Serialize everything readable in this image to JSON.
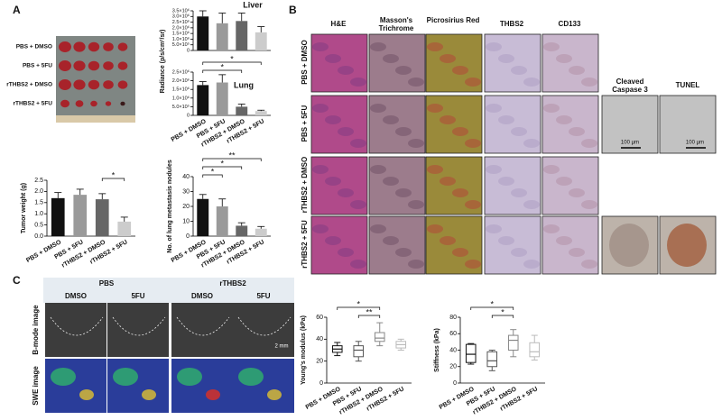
{
  "panel_labels": [
    "A",
    "B",
    "C"
  ],
  "panel_a": {
    "photo_rows": [
      "PBS + DMSO",
      "PBS + 5FU",
      "rTHBS2 + DMSO",
      "rTHBS2 + 5FU"
    ]
  },
  "panel_b": {
    "columns": [
      "H&E",
      "Masson's Trichrome",
      "Picrosirius Red",
      "THBS2",
      "CD133"
    ],
    "extra_columns": [
      "Cleaved Caspase 3",
      "TUNEL"
    ],
    "rows": [
      "PBS + DMSO",
      "PBS + 5FU",
      "rTHBS2 + DMSO",
      "rTHBS2 + 5FU"
    ],
    "scale_bars": [
      "100 μm",
      "100 μm"
    ]
  },
  "panel_c": {
    "groups": [
      "PBS",
      "rTHBS2"
    ],
    "columns": [
      "DMSO",
      "5FU",
      "DMSO",
      "5FU"
    ],
    "rows": [
      "B-mode image",
      "SWE image"
    ],
    "scale_bar": "2 mm"
  },
  "chart_data": [
    {
      "type": "bar",
      "title": "Liver",
      "values": [
        3000000,
        2400000,
        2600000,
        1600000
      ],
      "errors": [
        500000,
        900000,
        700000,
        500000
      ],
      "colors": [
        "#111111",
        "#9a9a9a",
        "#666666",
        "#cccccc"
      ],
      "ylim": [
        0,
        3500000
      ],
      "yticks": [
        0,
        {
          "value": 500000,
          "label": "5.0×10⁵"
        },
        {
          "value": 1000000,
          "label": "1.0×10⁶"
        },
        {
          "value": 1500000,
          "label": "1.5×10⁶"
        },
        {
          "value": 2000000,
          "label": "2.0×10⁶"
        },
        {
          "value": 2500000,
          "label": "2.5×10⁶"
        },
        {
          "value": 3000000,
          "label": "3.0×10⁶"
        },
        {
          "value": 3500000,
          "label": "3.5×10⁶"
        }
      ]
    },
    {
      "type": "bar",
      "title": "Lung",
      "y_label": "Radiance (p/s/cm²/sr)",
      "categories": [
        "PBS + DMSO",
        "PBS + 5FU",
        "rTHBS2 + DMSO",
        "rTHBS2 + 5FU"
      ],
      "values": [
        1750000,
        1900000,
        500000,
        250000
      ],
      "errors": [
        200000,
        450000,
        150000,
        50000
      ],
      "colors": [
        "#111111",
        "#9a9a9a",
        "#666666",
        "#cccccc"
      ],
      "ylim": [
        0,
        2500000
      ],
      "yticks": [
        0,
        {
          "value": 500000,
          "label": "5.0×10⁵"
        },
        {
          "value": 1000000,
          "label": "1.0×10⁶"
        },
        {
          "value": 1500000,
          "label": "1.5×10⁶"
        },
        {
          "value": 2000000,
          "label": "2.0×10⁶"
        },
        {
          "value": 2500000,
          "label": "2.5×10⁶"
        }
      ],
      "annotations": [
        "*",
        "*"
      ]
    },
    {
      "type": "bar",
      "y_label": "Tumor weight (g)",
      "categories": [
        "PBS + DMSO",
        "PBS + 5FU",
        "rTHBS2 + DMSO",
        "rTHBS2 + 5FU"
      ],
      "values": [
        1.7,
        1.85,
        1.65,
        0.65
      ],
      "errors": [
        0.25,
        0.25,
        0.25,
        0.2
      ],
      "colors": [
        "#111111",
        "#9a9a9a",
        "#666666",
        "#cccccc"
      ],
      "ylim": [
        0,
        2.5
      ],
      "yticks": [
        {
          "value": 0,
          "label": "0.0"
        },
        0.5,
        {
          "value": 1,
          "label": "1.0"
        },
        1.5,
        {
          "value": 2,
          "label": "2.0"
        },
        2.5
      ],
      "annotations": [
        "*"
      ]
    },
    {
      "type": "bar",
      "y_label": "No. of lung metastasis nodules",
      "categories": [
        "PBS + DMSO",
        "PBS + 5FU",
        "rTHBS2 + DMSO",
        "rTHBS2 + 5FU"
      ],
      "values": [
        25,
        20,
        7,
        5
      ],
      "errors": [
        3,
        5,
        2,
        1.5
      ],
      "colors": [
        "#111111",
        "#9a9a9a",
        "#666666",
        "#cccccc"
      ],
      "ylim": [
        0,
        40
      ],
      "yticks": [
        0,
        10,
        20,
        30,
        40
      ],
      "annotations": [
        "*",
        "*",
        "**"
      ]
    },
    {
      "type": "box",
      "y_label": "Young's modulus (kPa)",
      "categories": [
        "PBS + DMSO",
        "PBS + 5FU",
        "rTHBS2 + DMSO",
        "rTHBS2 + 5FU"
      ],
      "min": [
        25,
        20,
        34,
        30
      ],
      "q1": [
        28,
        24,
        38,
        32
      ],
      "median": [
        31,
        30,
        41,
        35
      ],
      "q3": [
        34,
        34,
        46,
        38
      ],
      "max": [
        37,
        38,
        55,
        40
      ],
      "colors": [
        "#111111",
        "#555555",
        "#888888",
        "#bbbbbb"
      ],
      "ylim": [
        0,
        60
      ],
      "yticks": [
        0,
        20,
        40,
        60
      ],
      "annotations": [
        "*",
        "**"
      ]
    },
    {
      "type": "box",
      "y_label": "Stiffness (kPa)",
      "categories": [
        "PBS + DMSO",
        "PBS + 5FU",
        "rTHBS2 + DMSO",
        "rTHBS2 + 5FU"
      ],
      "min": [
        23,
        15,
        32,
        28
      ],
      "q1": [
        25,
        20,
        40,
        32
      ],
      "median": [
        35,
        27,
        52,
        38
      ],
      "q3": [
        47,
        38,
        58,
        49
      ],
      "max": [
        48,
        40,
        65,
        58
      ],
      "colors": [
        "#111111",
        "#555555",
        "#888888",
        "#bbbbbb"
      ],
      "ylim": [
        0,
        80
      ],
      "yticks": [
        0,
        20,
        40,
        60,
        80
      ],
      "annotations": [
        "*",
        "*"
      ]
    }
  ]
}
